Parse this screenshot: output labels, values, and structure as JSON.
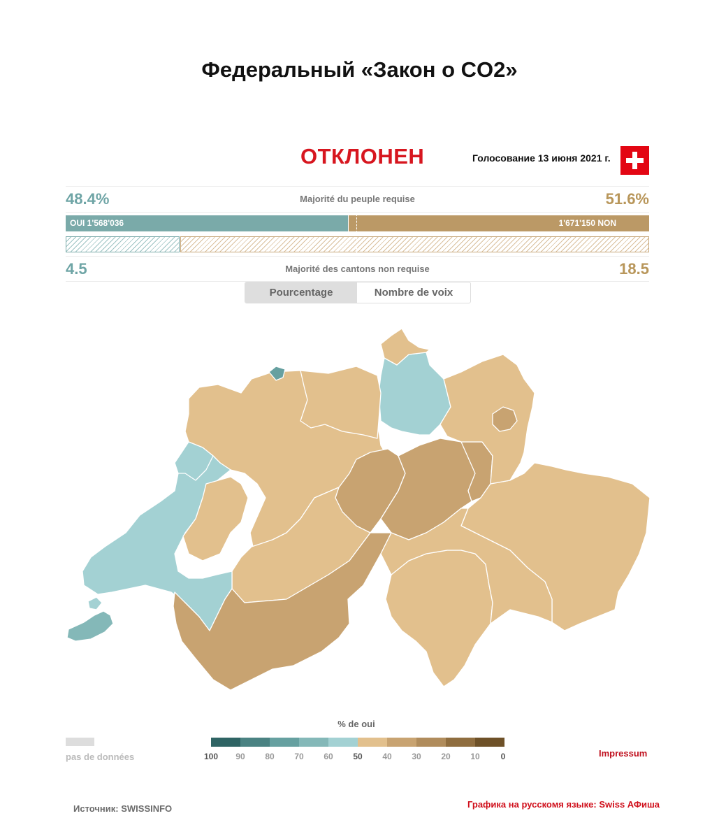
{
  "header": {
    "title": "Федеральный «Закон о CO2»",
    "status": "ОТКЛОНЕН",
    "vote_date": "Голосование 13 июня 2021 г."
  },
  "people": {
    "yes_percent": "48.4%",
    "no_percent": "51.6%",
    "label": "Majorité du peuple requise",
    "yes_votes_label": "OUI 1'568'036",
    "no_votes_label": "1'671'150 NON",
    "yes_share": 48.4
  },
  "cantons": {
    "yes": "4.5",
    "no": "18.5",
    "label": "Majorité des cantons non requise"
  },
  "toggle": {
    "percentage": "Pourcentage",
    "votes": "Nombre de voix",
    "active": "percentage"
  },
  "legend": {
    "title": "% de oui",
    "no_data": "pas de données",
    "ticks": [
      "100",
      "90",
      "80",
      "70",
      "60",
      "50",
      "40",
      "30",
      "20",
      "10",
      "0"
    ],
    "colors": [
      "#2f6464",
      "#4a8282",
      "#66a0a0",
      "#84b8b8",
      "#a3d1d3",
      "#e2c08d",
      "#c8a371",
      "#b08c5c",
      "#8f6d3f",
      "#6e5128"
    ]
  },
  "links": {
    "impressum": "Impressum"
  },
  "footer": {
    "source": "Источник: SWISSINFO",
    "credit": "Графика на русскомя языке: Swiss АФиша"
  },
  "colors": {
    "yes": "#7aaaa9",
    "no": "#bb9966",
    "accent_red": "#d7161f",
    "map_yes": "#a3d1d3",
    "map_yes_dark": "#84b8b8",
    "map_no_light": "#e2c08d",
    "map_no_mid": "#c8a371"
  }
}
